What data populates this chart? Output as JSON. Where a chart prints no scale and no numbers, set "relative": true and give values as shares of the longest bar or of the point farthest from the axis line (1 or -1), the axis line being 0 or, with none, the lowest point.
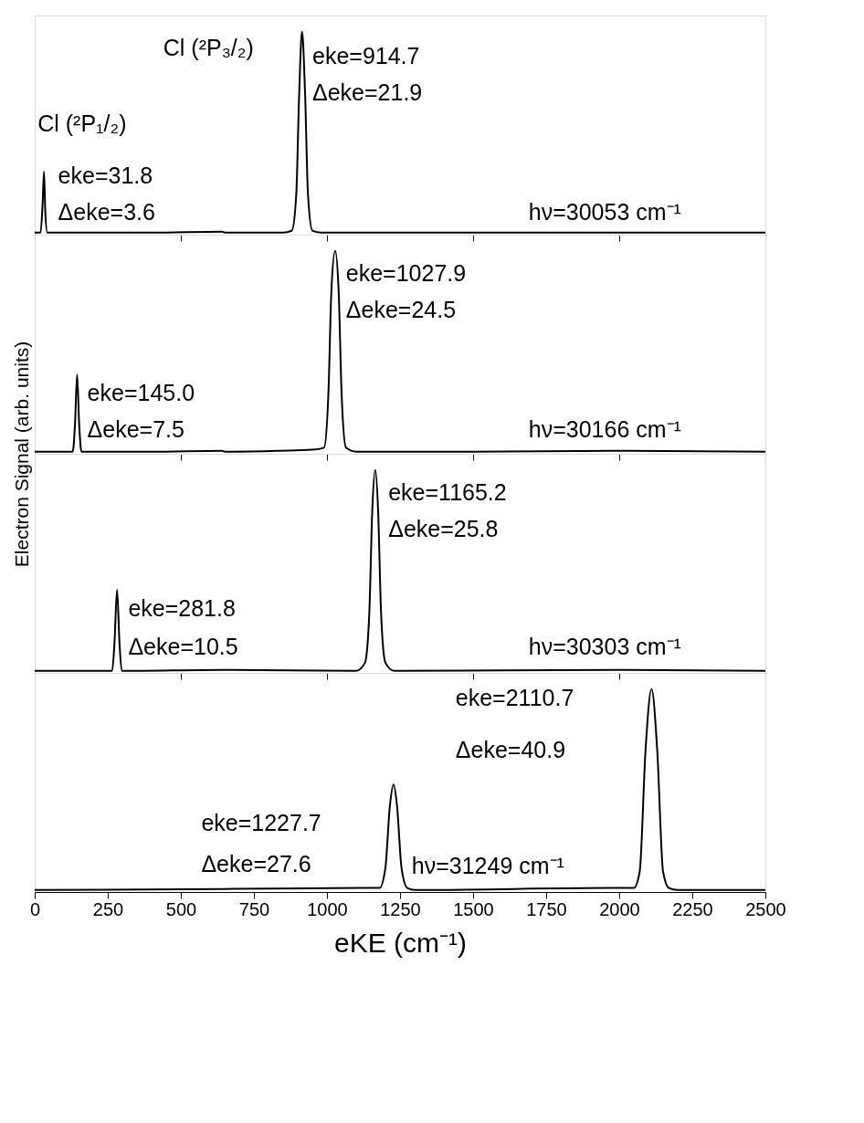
{
  "chart_data": [
    {
      "type": "line",
      "relative": true,
      "xlim": [
        0,
        2500
      ],
      "xticks": [
        0,
        500,
        1000,
        1500,
        2000,
        2500
      ],
      "tick_labels": false,
      "series": [
        {
          "color": "#000000",
          "x": [
            0,
            20,
            27,
            31.8,
            36,
            43,
            100,
            400,
            640,
            650,
            660,
            850,
            880,
            895,
            905,
            914.7,
            925,
            935,
            950,
            980,
            1300,
            1980,
            2500
          ],
          "values": [
            0.01,
            0.01,
            0.15,
            0.31,
            0.12,
            0.01,
            0.01,
            0.01,
            0.015,
            0.01,
            0.01,
            0.01,
            0.02,
            0.2,
            0.7,
            1,
            0.7,
            0.2,
            0.02,
            0.01,
            0.01,
            0.01,
            0.01
          ]
        }
      ],
      "annotations": [
        "Cl (²P₃/₂)",
        "eke=914.7",
        "Δeke=21.9",
        "Cl (²P₁/₂)",
        "eke=31.8",
        "Δeke=3.6",
        "hν=30053 cm⁻¹"
      ]
    },
    {
      "type": "line",
      "relative": true,
      "xlim": [
        0,
        2500
      ],
      "xticks": [
        0,
        500,
        1000,
        1500,
        2000,
        2500
      ],
      "tick_labels": false,
      "ylabel": "Electron Signal (arb. units)",
      "series": [
        {
          "color": "#000000",
          "x": [
            0,
            130,
            138,
            145,
            152,
            160,
            400,
            640,
            650,
            840,
            950,
            990,
            1005,
            1015,
            1027.9,
            1040,
            1050,
            1065,
            1100,
            1500,
            1980,
            2500
          ],
          "values": [
            0.01,
            0.01,
            0.15,
            0.39,
            0.15,
            0.01,
            0.01,
            0.015,
            0.01,
            0.015,
            0.02,
            0.03,
            0.3,
            0.8,
            1,
            0.8,
            0.3,
            0.03,
            0.01,
            0.01,
            0.015,
            0.01
          ]
        }
      ],
      "annotations": [
        "eke=1027.9",
        "Δeke=24.5",
        "eke=145.0",
        "Δeke=7.5",
        "hν=30166 cm⁻¹"
      ]
    },
    {
      "type": "line",
      "relative": true,
      "xlim": [
        0,
        2500
      ],
      "xticks": [
        0,
        500,
        1000,
        1500,
        2000,
        2500
      ],
      "tick_labels": false,
      "series": [
        {
          "color": "#000000",
          "x": [
            0,
            265,
            273,
            281.8,
            290,
            298,
            640,
            1100,
            1130,
            1145,
            1155,
            1165.2,
            1175,
            1185,
            1200,
            1230,
            1980,
            2500
          ],
          "values": [
            0.01,
            0.01,
            0.15,
            0.41,
            0.15,
            0.01,
            0.015,
            0.01,
            0.05,
            0.3,
            0.8,
            1,
            0.8,
            0.3,
            0.05,
            0.01,
            0.015,
            0.01
          ]
        }
      ],
      "annotations": [
        "eke=1165.2",
        "Δeke=25.8",
        "eke=281.8",
        "Δeke=10.5",
        "hν=30303 cm⁻¹"
      ]
    },
    {
      "type": "line",
      "relative": true,
      "xlim": [
        0,
        2500
      ],
      "xticks": [
        0,
        250,
        500,
        750,
        1000,
        1250,
        1500,
        1750,
        2000,
        2250,
        2500
      ],
      "tick_labels": "x",
      "xlabel": "eKE (cm⁻¹)",
      "series": [
        {
          "color": "#000000",
          "x": [
            0,
            640,
            1120,
            1180,
            1200,
            1215,
            1227.7,
            1240,
            1255,
            1275,
            1300,
            1980,
            2050,
            2070,
            2090,
            2110.7,
            2130,
            2150,
            2170,
            2200,
            2500
          ],
          "values": [
            0.01,
            0.015,
            0.02,
            0.02,
            0.12,
            0.42,
            0.53,
            0.42,
            0.12,
            0.02,
            0.01,
            0.02,
            0.02,
            0.1,
            0.7,
            1,
            0.7,
            0.1,
            0.02,
            0.01,
            0.01
          ]
        }
      ],
      "annotations": [
        "eke=2110.7",
        "Δeke=40.9",
        "eke=1227.7",
        "Δeke=27.6",
        "hν=31249 cm⁻¹"
      ]
    }
  ]
}
